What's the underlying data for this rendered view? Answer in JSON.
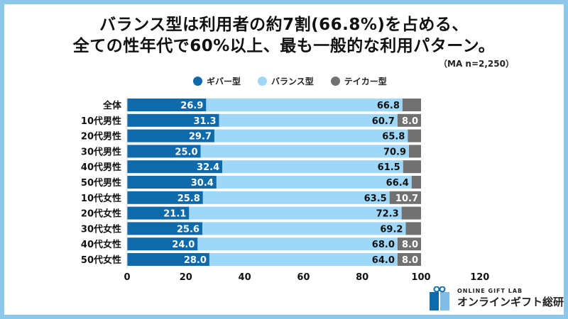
{
  "title_line1": "バランス型は利用者の約7割(66.8%)を占める、",
  "title_line2": "全ての性年代で60%以上、最も一般的な利用パターン。",
  "sample_note": "（MA n=2,250）",
  "logo": {
    "en": "ONLINE GIFT LAB",
    "ja": "オンラインギフト総研"
  },
  "colors": {
    "giver": "#0e6aab",
    "balance": "#9fd7f8",
    "taker": "#717171",
    "frame": "#8cc8ea"
  },
  "chart_data": {
    "type": "bar",
    "orientation": "horizontal",
    "stacked": true,
    "categories": [
      "全体",
      "10代男性",
      "20代男性",
      "30代男性",
      "40代男性",
      "50代男性",
      "10代女性",
      "20代女性",
      "30代女性",
      "40代女性",
      "50代女性"
    ],
    "series": [
      {
        "name": "ギバー型",
        "values": [
          26.9,
          31.3,
          29.7,
          25.0,
          32.4,
          30.4,
          25.8,
          21.1,
          25.6,
          24.0,
          28.0
        ],
        "labels": [
          "26.9",
          "31.3",
          "29.7",
          "25.0",
          "32.4",
          "30.4",
          "25.8",
          "21.1",
          "25.6",
          "24.0",
          "28.0"
        ]
      },
      {
        "name": "バランス型",
        "values": [
          66.8,
          60.7,
          65.8,
          70.9,
          61.5,
          66.4,
          63.5,
          72.3,
          69.2,
          68.0,
          64.0
        ],
        "labels": [
          "66.8",
          "60.7",
          "65.8",
          "70.9",
          "61.5",
          "66.4",
          "63.5",
          "72.3",
          "69.2",
          "68.0",
          "64.0"
        ]
      },
      {
        "name": "テイカー型",
        "values": [
          6.3,
          8.0,
          4.5,
          4.1,
          6.1,
          3.2,
          10.7,
          6.6,
          5.2,
          8.0,
          8.0
        ],
        "labels": [
          null,
          "8.0",
          null,
          null,
          null,
          null,
          "10.7",
          null,
          null,
          "8.0",
          "8.0"
        ]
      }
    ],
    "xlim": [
      0,
      120
    ],
    "xticks": [
      "0",
      "20",
      "40",
      "60",
      "80",
      "100",
      "120"
    ],
    "grid": false,
    "legend": "top"
  }
}
